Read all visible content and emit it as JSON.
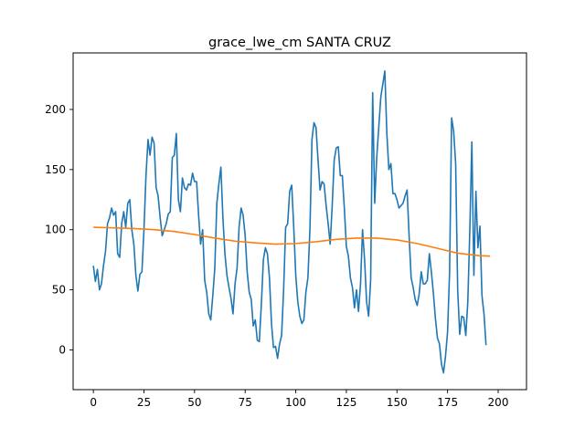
{
  "chart_data": {
    "type": "line",
    "title": "grace_lwe_cm SANTA CRUZ",
    "xlabel": "",
    "ylabel": "",
    "xlim": [
      -10,
      214
    ],
    "ylim": [
      -33,
      247
    ],
    "x_ticks": [
      0,
      25,
      50,
      75,
      100,
      125,
      150,
      175,
      200
    ],
    "y_ticks": [
      0,
      50,
      100,
      150,
      200
    ],
    "grid": false,
    "legend": "none",
    "series": [
      {
        "color": "#1f77b4",
        "points": [
          [
            0,
            70
          ],
          [
            1,
            57
          ],
          [
            2,
            67
          ],
          [
            3,
            50
          ],
          [
            4,
            55
          ],
          [
            5,
            70
          ],
          [
            6,
            82
          ],
          [
            7,
            105
          ],
          [
            8,
            110
          ],
          [
            9,
            118
          ],
          [
            10,
            112
          ],
          [
            11,
            115
          ],
          [
            12,
            80
          ],
          [
            13,
            77
          ],
          [
            14,
            105
          ],
          [
            15,
            115
          ],
          [
            16,
            102
          ],
          [
            17,
            122
          ],
          [
            18,
            125
          ],
          [
            19,
            100
          ],
          [
            20,
            88
          ],
          [
            21,
            62
          ],
          [
            22,
            49
          ],
          [
            23,
            63
          ],
          [
            24,
            65
          ],
          [
            25,
            100
          ],
          [
            26,
            145
          ],
          [
            27,
            175
          ],
          [
            28,
            162
          ],
          [
            29,
            177
          ],
          [
            30,
            172
          ],
          [
            31,
            135
          ],
          [
            32,
            128
          ],
          [
            33,
            110
          ],
          [
            34,
            95
          ],
          [
            35,
            100
          ],
          [
            36,
            105
          ],
          [
            37,
            113
          ],
          [
            38,
            115
          ],
          [
            39,
            160
          ],
          [
            40,
            162
          ],
          [
            41,
            180
          ],
          [
            42,
            125
          ],
          [
            43,
            115
          ],
          [
            44,
            143
          ],
          [
            45,
            135
          ],
          [
            46,
            133
          ],
          [
            47,
            138
          ],
          [
            48,
            137
          ],
          [
            49,
            147
          ],
          [
            50,
            140
          ],
          [
            51,
            140
          ],
          [
            52,
            112
          ],
          [
            53,
            88
          ],
          [
            54,
            100
          ],
          [
            55,
            58
          ],
          [
            56,
            48
          ],
          [
            57,
            30
          ],
          [
            58,
            25
          ],
          [
            59,
            45
          ],
          [
            60,
            68
          ],
          [
            61,
            122
          ],
          [
            62,
            138
          ],
          [
            63,
            152
          ],
          [
            64,
            110
          ],
          [
            65,
            80
          ],
          [
            66,
            62
          ],
          [
            67,
            52
          ],
          [
            68,
            43
          ],
          [
            69,
            30
          ],
          [
            70,
            55
          ],
          [
            71,
            68
          ],
          [
            72,
            102
          ],
          [
            73,
            118
          ],
          [
            74,
            112
          ],
          [
            75,
            95
          ],
          [
            76,
            65
          ],
          [
            77,
            48
          ],
          [
            78,
            42
          ],
          [
            79,
            20
          ],
          [
            80,
            25
          ],
          [
            81,
            8
          ],
          [
            82,
            7
          ],
          [
            83,
            38
          ],
          [
            84,
            75
          ],
          [
            85,
            85
          ],
          [
            86,
            80
          ],
          [
            87,
            60
          ],
          [
            88,
            22
          ],
          [
            89,
            2
          ],
          [
            90,
            3
          ],
          [
            91,
            -7
          ],
          [
            92,
            5
          ],
          [
            93,
            12
          ],
          [
            94,
            50
          ],
          [
            95,
            102
          ],
          [
            96,
            105
          ],
          [
            97,
            132
          ],
          [
            98,
            137
          ],
          [
            99,
            102
          ],
          [
            100,
            62
          ],
          [
            101,
            40
          ],
          [
            102,
            28
          ],
          [
            103,
            22
          ],
          [
            104,
            25
          ],
          [
            105,
            48
          ],
          [
            106,
            60
          ],
          [
            107,
            100
          ],
          [
            108,
            175
          ],
          [
            109,
            189
          ],
          [
            110,
            185
          ],
          [
            111,
            158
          ],
          [
            112,
            133
          ],
          [
            113,
            140
          ],
          [
            114,
            138
          ],
          [
            115,
            120
          ],
          [
            116,
            105
          ],
          [
            117,
            88
          ],
          [
            118,
            120
          ],
          [
            119,
            158
          ],
          [
            120,
            168
          ],
          [
            121,
            169
          ],
          [
            122,
            145
          ],
          [
            123,
            145
          ],
          [
            124,
            118
          ],
          [
            125,
            86
          ],
          [
            126,
            78
          ],
          [
            127,
            60
          ],
          [
            128,
            52
          ],
          [
            129,
            35
          ],
          [
            130,
            50
          ],
          [
            131,
            32
          ],
          [
            132,
            55
          ],
          [
            133,
            100
          ],
          [
            134,
            75
          ],
          [
            135,
            40
          ],
          [
            136,
            28
          ],
          [
            137,
            58
          ],
          [
            138,
            214
          ],
          [
            139,
            122
          ],
          [
            140,
            160
          ],
          [
            141,
            185
          ],
          [
            142,
            210
          ],
          [
            143,
            221
          ],
          [
            144,
            232
          ],
          [
            145,
            180
          ],
          [
            146,
            150
          ],
          [
            147,
            155
          ],
          [
            148,
            130
          ],
          [
            149,
            130
          ],
          [
            150,
            125
          ],
          [
            151,
            118
          ],
          [
            152,
            120
          ],
          [
            153,
            122
          ],
          [
            154,
            128
          ],
          [
            155,
            133
          ],
          [
            156,
            95
          ],
          [
            157,
            60
          ],
          [
            158,
            52
          ],
          [
            159,
            42
          ],
          [
            160,
            37
          ],
          [
            161,
            47
          ],
          [
            162,
            65
          ],
          [
            163,
            55
          ],
          [
            164,
            55
          ],
          [
            165,
            58
          ],
          [
            166,
            80
          ],
          [
            167,
            65
          ],
          [
            168,
            47
          ],
          [
            169,
            26
          ],
          [
            170,
            10
          ],
          [
            171,
            5
          ],
          [
            172,
            -12
          ],
          [
            173,
            -19
          ],
          [
            174,
            -5
          ],
          [
            175,
            15
          ],
          [
            176,
            65
          ],
          [
            177,
            193
          ],
          [
            178,
            182
          ],
          [
            179,
            155
          ],
          [
            180,
            50
          ],
          [
            181,
            13
          ],
          [
            182,
            28
          ],
          [
            183,
            27
          ],
          [
            184,
            12
          ],
          [
            185,
            40
          ],
          [
            186,
            100
          ],
          [
            187,
            173
          ],
          [
            188,
            62
          ],
          [
            189,
            132
          ],
          [
            190,
            85
          ],
          [
            191,
            103
          ],
          [
            192,
            45
          ],
          [
            193,
            30
          ],
          [
            194,
            4
          ]
        ]
      },
      {
        "color": "#ff7f0e",
        "points": [
          [
            0,
            102
          ],
          [
            10,
            101.5
          ],
          [
            20,
            101
          ],
          [
            30,
            100
          ],
          [
            40,
            98.5
          ],
          [
            50,
            96
          ],
          [
            60,
            93
          ],
          [
            70,
            90.5
          ],
          [
            80,
            89
          ],
          [
            90,
            88
          ],
          [
            100,
            88.5
          ],
          [
            110,
            90
          ],
          [
            120,
            92
          ],
          [
            130,
            93
          ],
          [
            140,
            93
          ],
          [
            150,
            91.5
          ],
          [
            160,
            88.5
          ],
          [
            170,
            84.5
          ],
          [
            180,
            80.5
          ],
          [
            190,
            78.5
          ],
          [
            196,
            78
          ]
        ]
      }
    ]
  }
}
